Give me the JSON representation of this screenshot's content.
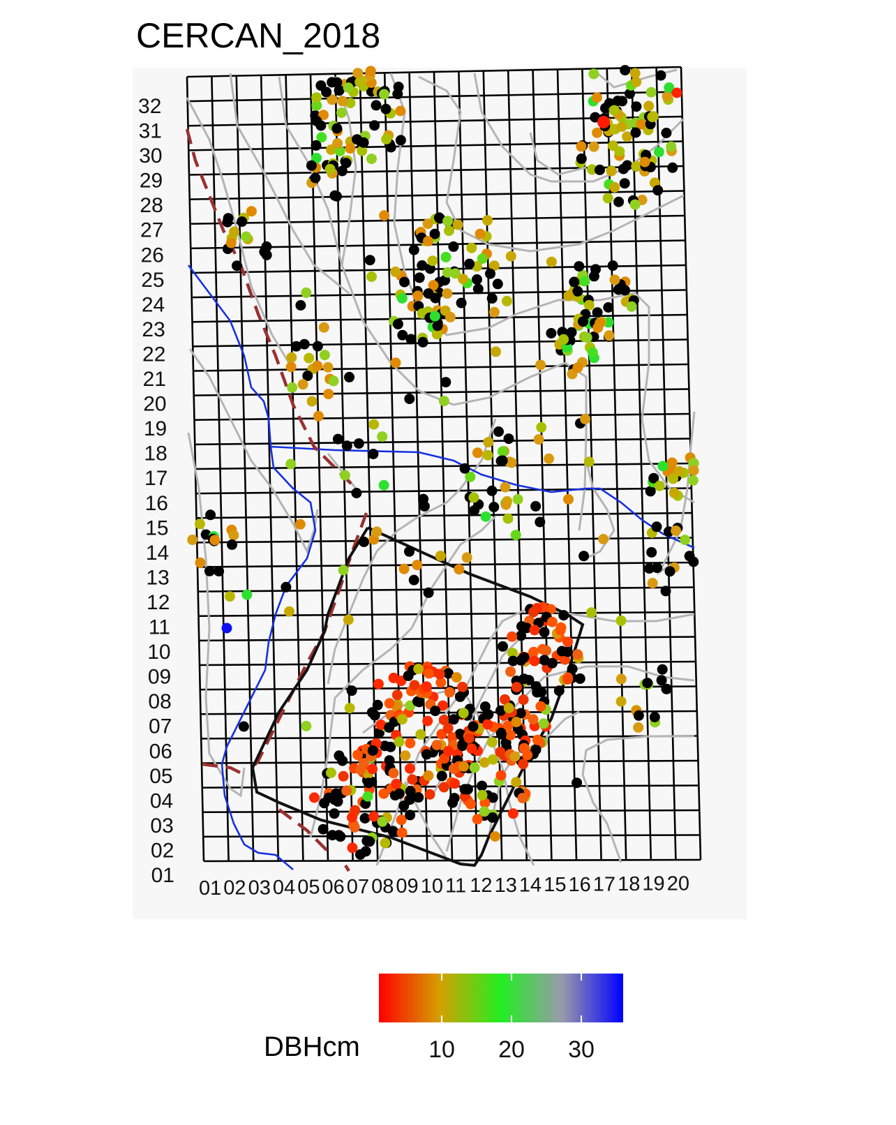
{
  "title": "CERCAN_2018",
  "chart_data": {
    "type": "scatter",
    "title": "CERCAN_2018",
    "x_tick_labels": [
      "01",
      "02",
      "03",
      "04",
      "05",
      "06",
      "07",
      "08",
      "09",
      "10",
      "11",
      "12",
      "13",
      "14",
      "15",
      "16",
      "17",
      "18",
      "19",
      "20"
    ],
    "y_tick_labels": [
      "01",
      "02",
      "03",
      "04",
      "05",
      "06",
      "07",
      "08",
      "09",
      "10",
      "11",
      "12",
      "13",
      "14",
      "15",
      "16",
      "17",
      "18",
      "19",
      "20",
      "21",
      "22",
      "23",
      "24",
      "25",
      "26",
      "27",
      "28",
      "29",
      "30",
      "31",
      "32"
    ],
    "grid": {
      "columns": 20,
      "rows": 32
    },
    "legend": {
      "title": "DBHcm",
      "type": "colorbar",
      "position": "bottom",
      "ticks": [
        10,
        20,
        30
      ],
      "range": [
        1,
        36
      ],
      "colors": [
        "#ff0000",
        "#d4a000",
        "#22ee22",
        "#9999aa",
        "#0000ff"
      ],
      "na_color": "#000000"
    },
    "colors": {
      "grid_line": "#000000",
      "contour_line": "#b4b4b4",
      "stream_line": "#1530e0",
      "trail_line": "#9b3030",
      "plot_boundary": "#111111",
      "panel_background": "#f7f7f7"
    }
  }
}
